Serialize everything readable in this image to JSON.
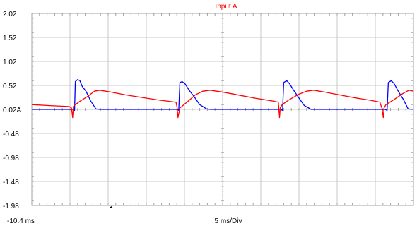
{
  "chart_data": {
    "type": "line",
    "title": "Input A",
    "title_color": "#ff0000",
    "x_start_label": "-10.4 ms",
    "time_div_label": "5 ms/Div",
    "x_range_ms": [
      -10.4,
      39.6
    ],
    "ylim": [
      -1.98,
      2.02
    ],
    "y_ticks": [
      "2.02",
      "1.52",
      "1.02",
      "0.52",
      "0.02A",
      "-0.48",
      "-0.98",
      "-1.48",
      "-1.98"
    ],
    "x_divisions": 10,
    "grid": true,
    "trigger_marker_ms": 0,
    "series": [
      {
        "color": "#0000ff",
        "x": [
          -10.4,
          -6.0,
          -5.0,
          -4.8,
          -4.7,
          -4.4,
          -4.1,
          -3.8,
          -3.3,
          -2.7,
          -2.0,
          -1.5,
          0.0,
          4.0,
          8.0,
          8.7,
          8.85,
          9.0,
          9.3,
          9.7,
          10.2,
          10.8,
          11.6,
          12.5,
          13.0,
          17.0,
          21.0,
          22.2,
          22.45,
          22.6,
          23.0,
          23.4,
          23.9,
          24.5,
          25.3,
          26.2,
          26.8,
          30.0,
          34.0,
          35.9,
          36.15,
          36.3,
          36.7,
          37.1,
          37.6,
          38.3,
          38.9,
          39.6
        ],
        "y": [
          0.02,
          0.02,
          0.02,
          0.0,
          0.6,
          0.64,
          0.62,
          0.5,
          0.4,
          0.2,
          0.03,
          0.02,
          0.02,
          0.02,
          0.02,
          0.02,
          0.0,
          0.58,
          0.6,
          0.55,
          0.42,
          0.3,
          0.12,
          0.03,
          0.02,
          0.02,
          0.02,
          0.02,
          0.0,
          0.58,
          0.62,
          0.55,
          0.42,
          0.28,
          0.1,
          0.02,
          0.02,
          0.02,
          0.02,
          0.02,
          0.0,
          0.58,
          0.62,
          0.55,
          0.4,
          0.22,
          0.03,
          0.02
        ]
      },
      {
        "color": "#ff0000",
        "x": [
          -10.4,
          -8.0,
          -5.5,
          -5.2,
          -5.05,
          -4.95,
          -4.7,
          -4.0,
          -3.0,
          -2.2,
          -1.5,
          0.0,
          2.0,
          4.0,
          6.0,
          8.0,
          8.5,
          8.65,
          8.75,
          9.0,
          10.0,
          11.0,
          12.0,
          13.0,
          15.0,
          17.0,
          19.0,
          21.0,
          21.9,
          22.05,
          22.15,
          22.4,
          23.3,
          24.5,
          25.6,
          26.5,
          28.0,
          30.0,
          32.0,
          34.0,
          35.2,
          35.5,
          35.65,
          35.75,
          36.0,
          37.0,
          38.2,
          39.0,
          39.6
        ],
        "y": [
          0.12,
          0.1,
          0.08,
          0.05,
          -0.15,
          0.08,
          0.12,
          0.2,
          0.3,
          0.4,
          0.42,
          0.38,
          0.32,
          0.27,
          0.22,
          0.18,
          0.17,
          0.05,
          -0.15,
          0.05,
          0.18,
          0.32,
          0.4,
          0.42,
          0.37,
          0.31,
          0.25,
          0.2,
          0.17,
          -0.15,
          0.05,
          0.12,
          0.22,
          0.33,
          0.4,
          0.42,
          0.38,
          0.32,
          0.26,
          0.21,
          0.17,
          0.03,
          -0.15,
          0.05,
          0.12,
          0.22,
          0.35,
          0.42,
          0.4
        ]
      }
    ]
  }
}
